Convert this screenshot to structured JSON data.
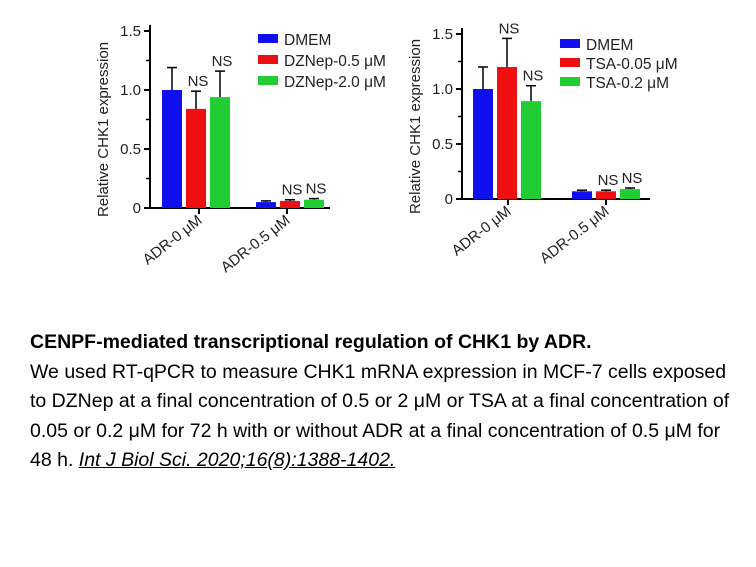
{
  "chart_data": [
    {
      "type": "bar",
      "ylabel": "Relative CHK1 expression",
      "ylim": [
        0,
        1.5
      ],
      "yticks": [
        "0",
        "0.5",
        "1.0",
        "1.5"
      ],
      "categories": [
        "ADR-0 μM",
        "ADR-0.5 μM"
      ],
      "legend_position": "top-right",
      "series": [
        {
          "name": "DMEM",
          "color": "#1010ee",
          "values": [
            1.0,
            0.05
          ],
          "errors": [
            0.19,
            0.01
          ],
          "labels": [
            "",
            ""
          ]
        },
        {
          "name": "DZNep-0.5 μM",
          "color": "#ee1010",
          "values": [
            0.84,
            0.06
          ],
          "errors": [
            0.15,
            0.01
          ],
          "labels": [
            "NS",
            "NS"
          ]
        },
        {
          "name": "DZNep-2.0 μM",
          "color": "#22cc33",
          "values": [
            0.94,
            0.07
          ],
          "errors": [
            0.22,
            0.01
          ],
          "labels": [
            "NS",
            "NS"
          ]
        }
      ]
    },
    {
      "type": "bar",
      "ylabel": "Relative CHK1 expression",
      "ylim": [
        0,
        1.5
      ],
      "yticks": [
        "0",
        "0.5",
        "1.0",
        "1.5"
      ],
      "categories": [
        "ADR-0 μM",
        "ADR-0.5 μM"
      ],
      "legend_position": "top-right",
      "series": [
        {
          "name": "DMEM",
          "color": "#1010ee",
          "values": [
            1.0,
            0.07
          ],
          "errors": [
            0.2,
            0.01
          ],
          "labels": [
            "",
            ""
          ]
        },
        {
          "name": "TSA-0.05 μM",
          "color": "#ee1010",
          "values": [
            1.2,
            0.07
          ],
          "errors": [
            0.26,
            0.01
          ],
          "labels": [
            "NS",
            "NS"
          ]
        },
        {
          "name": "TSA-0.2 μM",
          "color": "#22cc33",
          "values": [
            0.89,
            0.09
          ],
          "errors": [
            0.14,
            0.01
          ],
          "labels": [
            "NS",
            "NS"
          ]
        }
      ]
    }
  ],
  "caption": {
    "title": "CENPF-mediated transcriptional regulation of CHK1 by ADR.",
    "body": "We used RT-qPCR to measure CHK1 mRNA expression in MCF-7 cells exposed to DZNep at a final concentration of 0.5 or 2 μM or TSA at a final concentration of 0.05 or 0.2 μM for 72 h with or without ADR at a final concentration of 0.5 μM for 48 h. ",
    "citation": "Int J Biol Sci. 2020;16(8):1388-1402."
  }
}
